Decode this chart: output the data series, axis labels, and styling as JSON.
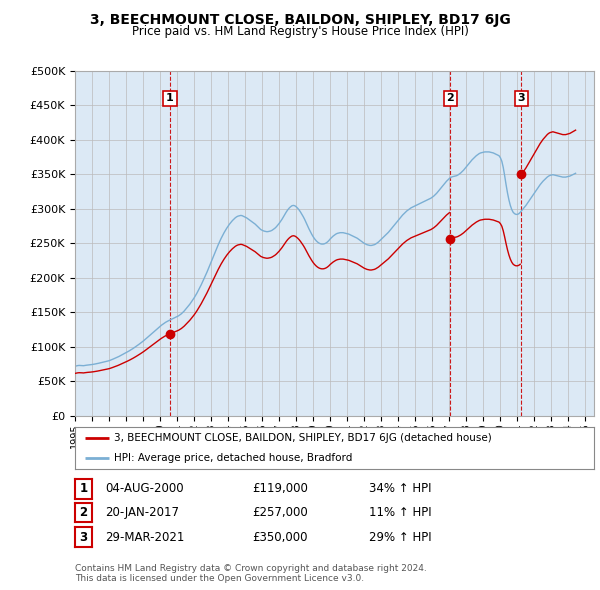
{
  "title": "3, BEECHMOUNT CLOSE, BAILDON, SHIPLEY, BD17 6JG",
  "subtitle": "Price paid vs. HM Land Registry's House Price Index (HPI)",
  "sales": [
    {
      "date_num": 2000.586,
      "date_label": "04-AUG-2000",
      "price": 119000,
      "pct": "34%",
      "label": "1"
    },
    {
      "date_num": 2017.055,
      "date_label": "20-JAN-2017",
      "price": 257000,
      "pct": "11%",
      "label": "2"
    },
    {
      "date_num": 2021.238,
      "date_label": "29-MAR-2021",
      "price": 350000,
      "pct": "29%",
      "label": "3"
    }
  ],
  "property_line_color": "#cc0000",
  "hpi_line_color": "#7bafd4",
  "vline_color": "#cc0000",
  "grid_color": "#bbbbbb",
  "plot_bg_color": "#dce9f5",
  "background_color": "#ffffff",
  "legend_label_property": "3, BEECHMOUNT CLOSE, BAILDON, SHIPLEY, BD17 6JG (detached house)",
  "legend_label_hpi": "HPI: Average price, detached house, Bradford",
  "footer": "Contains HM Land Registry data © Crown copyright and database right 2024.\nThis data is licensed under the Open Government Licence v3.0.",
  "ylim": [
    0,
    500000
  ],
  "xlim_left": 1995.0,
  "xlim_right": 2025.5,
  "ytick_step": 50000,
  "hpi_data_x": [
    1995.0,
    1995.083,
    1995.167,
    1995.25,
    1995.333,
    1995.417,
    1995.5,
    1995.583,
    1995.667,
    1995.75,
    1995.833,
    1995.917,
    1996.0,
    1996.083,
    1996.167,
    1996.25,
    1996.333,
    1996.417,
    1996.5,
    1996.583,
    1996.667,
    1996.75,
    1996.833,
    1996.917,
    1997.0,
    1997.083,
    1997.167,
    1997.25,
    1997.333,
    1997.417,
    1997.5,
    1997.583,
    1997.667,
    1997.75,
    1997.833,
    1997.917,
    1998.0,
    1998.083,
    1998.167,
    1998.25,
    1998.333,
    1998.417,
    1998.5,
    1998.583,
    1998.667,
    1998.75,
    1998.833,
    1998.917,
    1999.0,
    1999.083,
    1999.167,
    1999.25,
    1999.333,
    1999.417,
    1999.5,
    1999.583,
    1999.667,
    1999.75,
    1999.833,
    1999.917,
    2000.0,
    2000.083,
    2000.167,
    2000.25,
    2000.333,
    2000.417,
    2000.5,
    2000.583,
    2000.667,
    2000.75,
    2000.833,
    2000.917,
    2001.0,
    2001.083,
    2001.167,
    2001.25,
    2001.333,
    2001.417,
    2001.5,
    2001.583,
    2001.667,
    2001.75,
    2001.833,
    2001.917,
    2002.0,
    2002.083,
    2002.167,
    2002.25,
    2002.333,
    2002.417,
    2002.5,
    2002.583,
    2002.667,
    2002.75,
    2002.833,
    2002.917,
    2003.0,
    2003.083,
    2003.167,
    2003.25,
    2003.333,
    2003.417,
    2003.5,
    2003.583,
    2003.667,
    2003.75,
    2003.833,
    2003.917,
    2004.0,
    2004.083,
    2004.167,
    2004.25,
    2004.333,
    2004.417,
    2004.5,
    2004.583,
    2004.667,
    2004.75,
    2004.833,
    2004.917,
    2005.0,
    2005.083,
    2005.167,
    2005.25,
    2005.333,
    2005.417,
    2005.5,
    2005.583,
    2005.667,
    2005.75,
    2005.833,
    2005.917,
    2006.0,
    2006.083,
    2006.167,
    2006.25,
    2006.333,
    2006.417,
    2006.5,
    2006.583,
    2006.667,
    2006.75,
    2006.833,
    2006.917,
    2007.0,
    2007.083,
    2007.167,
    2007.25,
    2007.333,
    2007.417,
    2007.5,
    2007.583,
    2007.667,
    2007.75,
    2007.833,
    2007.917,
    2008.0,
    2008.083,
    2008.167,
    2008.25,
    2008.333,
    2008.417,
    2008.5,
    2008.583,
    2008.667,
    2008.75,
    2008.833,
    2008.917,
    2009.0,
    2009.083,
    2009.167,
    2009.25,
    2009.333,
    2009.417,
    2009.5,
    2009.583,
    2009.667,
    2009.75,
    2009.833,
    2009.917,
    2010.0,
    2010.083,
    2010.167,
    2010.25,
    2010.333,
    2010.417,
    2010.5,
    2010.583,
    2010.667,
    2010.75,
    2010.833,
    2010.917,
    2011.0,
    2011.083,
    2011.167,
    2011.25,
    2011.333,
    2011.417,
    2011.5,
    2011.583,
    2011.667,
    2011.75,
    2011.833,
    2011.917,
    2012.0,
    2012.083,
    2012.167,
    2012.25,
    2012.333,
    2012.417,
    2012.5,
    2012.583,
    2012.667,
    2012.75,
    2012.833,
    2012.917,
    2013.0,
    2013.083,
    2013.167,
    2013.25,
    2013.333,
    2013.417,
    2013.5,
    2013.583,
    2013.667,
    2013.75,
    2013.833,
    2013.917,
    2014.0,
    2014.083,
    2014.167,
    2014.25,
    2014.333,
    2014.417,
    2014.5,
    2014.583,
    2014.667,
    2014.75,
    2014.833,
    2014.917,
    2015.0,
    2015.083,
    2015.167,
    2015.25,
    2015.333,
    2015.417,
    2015.5,
    2015.583,
    2015.667,
    2015.75,
    2015.833,
    2015.917,
    2016.0,
    2016.083,
    2016.167,
    2016.25,
    2016.333,
    2016.417,
    2016.5,
    2016.583,
    2016.667,
    2016.75,
    2016.833,
    2016.917,
    2017.0,
    2017.083,
    2017.167,
    2017.25,
    2017.333,
    2017.417,
    2017.5,
    2017.583,
    2017.667,
    2017.75,
    2017.833,
    2017.917,
    2018.0,
    2018.083,
    2018.167,
    2018.25,
    2018.333,
    2018.417,
    2018.5,
    2018.583,
    2018.667,
    2018.75,
    2018.833,
    2018.917,
    2019.0,
    2019.083,
    2019.167,
    2019.25,
    2019.333,
    2019.417,
    2019.5,
    2019.583,
    2019.667,
    2019.75,
    2019.833,
    2019.917,
    2020.0,
    2020.083,
    2020.167,
    2020.25,
    2020.333,
    2020.417,
    2020.5,
    2020.583,
    2020.667,
    2020.75,
    2020.833,
    2020.917,
    2021.0,
    2021.083,
    2021.167,
    2021.25,
    2021.333,
    2021.417,
    2021.5,
    2021.583,
    2021.667,
    2021.75,
    2021.833,
    2021.917,
    2022.0,
    2022.083,
    2022.167,
    2022.25,
    2022.333,
    2022.417,
    2022.5,
    2022.583,
    2022.667,
    2022.75,
    2022.833,
    2022.917,
    2023.0,
    2023.083,
    2023.167,
    2023.25,
    2023.333,
    2023.417,
    2023.5,
    2023.583,
    2023.667,
    2023.75,
    2023.833,
    2023.917,
    2024.0,
    2024.083,
    2024.167,
    2024.25,
    2024.333,
    2024.417
  ],
  "hpi_data_y": [
    72000,
    72500,
    73000,
    73200,
    73100,
    73000,
    72800,
    73200,
    73500,
    73800,
    74000,
    74200,
    74500,
    74800,
    75200,
    75600,
    76000,
    76500,
    77000,
    77500,
    78000,
    78500,
    79000,
    79500,
    80000,
    80800,
    81600,
    82500,
    83400,
    84300,
    85200,
    86200,
    87300,
    88400,
    89500,
    90600,
    91700,
    92800,
    94000,
    95200,
    96500,
    97800,
    99200,
    100600,
    102100,
    103600,
    105100,
    106700,
    108300,
    110000,
    111800,
    113600,
    115400,
    117200,
    119000,
    120800,
    122600,
    124400,
    126200,
    128000,
    129800,
    131500,
    133000,
    134500,
    135800,
    137000,
    138000,
    139000,
    140000,
    141000,
    142000,
    143000,
    144000,
    145000,
    146500,
    148000,
    150000,
    152000,
    154500,
    157000,
    159500,
    162000,
    165000,
    168000,
    171000,
    174500,
    178000,
    182000,
    186000,
    190000,
    194500,
    199000,
    203500,
    208000,
    213000,
    218000,
    223000,
    228000,
    233000,
    238000,
    243000,
    248000,
    252500,
    257000,
    261000,
    265000,
    268500,
    272000,
    275000,
    278000,
    280500,
    283000,
    285000,
    287000,
    288500,
    289500,
    290000,
    290500,
    290000,
    289000,
    288000,
    287000,
    285500,
    284000,
    282500,
    281000,
    279500,
    278000,
    276000,
    274000,
    272000,
    270000,
    269000,
    268000,
    267500,
    267000,
    267000,
    267500,
    268000,
    269000,
    270500,
    272000,
    274000,
    276500,
    279000,
    282000,
    285000,
    288500,
    292000,
    295500,
    298500,
    301000,
    303000,
    304500,
    305000,
    304500,
    303000,
    301000,
    298500,
    295500,
    292000,
    288500,
    284500,
    280000,
    275500,
    271000,
    267000,
    263000,
    259500,
    256500,
    254000,
    252000,
    250500,
    249500,
    249000,
    249000,
    249500,
    250500,
    252000,
    254000,
    256500,
    258500,
    260500,
    262000,
    263500,
    264500,
    265000,
    265500,
    265500,
    265500,
    265000,
    264500,
    264000,
    263500,
    262500,
    261500,
    260500,
    259500,
    258500,
    257500,
    256000,
    254500,
    253000,
    251500,
    250000,
    249000,
    248000,
    247500,
    247000,
    247000,
    247500,
    248000,
    249000,
    250500,
    252000,
    254000,
    256000,
    258000,
    260000,
    262000,
    264000,
    266000,
    268500,
    271000,
    273500,
    276000,
    278500,
    281000,
    283500,
    286000,
    288500,
    291000,
    293000,
    295000,
    297000,
    298500,
    300000,
    301500,
    302500,
    303500,
    304500,
    305500,
    306500,
    307500,
    308500,
    309500,
    310500,
    311500,
    312500,
    313500,
    314500,
    315500,
    317000,
    318500,
    320500,
    322500,
    325000,
    327500,
    330000,
    332500,
    335000,
    337500,
    340000,
    342000,
    344000,
    345500,
    346500,
    347000,
    347500,
    348000,
    349000,
    350500,
    352000,
    354000,
    356000,
    358500,
    361000,
    363500,
    366000,
    368500,
    371000,
    373000,
    375000,
    377000,
    378500,
    380000,
    381000,
    381500,
    382000,
    382500,
    382500,
    382500,
    382500,
    382000,
    381500,
    381000,
    380000,
    379000,
    378000,
    377000,
    374000,
    369000,
    360000,
    348000,
    335000,
    323000,
    313000,
    305000,
    299000,
    295000,
    293000,
    292000,
    292000,
    293000,
    295000,
    297500,
    300000,
    302500,
    305000,
    308000,
    311000,
    314000,
    317000,
    320000,
    323000,
    326000,
    329000,
    332000,
    335000,
    337500,
    340000,
    342000,
    344000,
    346000,
    347500,
    348500,
    349000,
    349500,
    349000,
    348500,
    348000,
    347500,
    347000,
    346500,
    346000,
    346000,
    346000,
    346500,
    347000,
    347500,
    348500,
    349500,
    350500,
    351500
  ]
}
